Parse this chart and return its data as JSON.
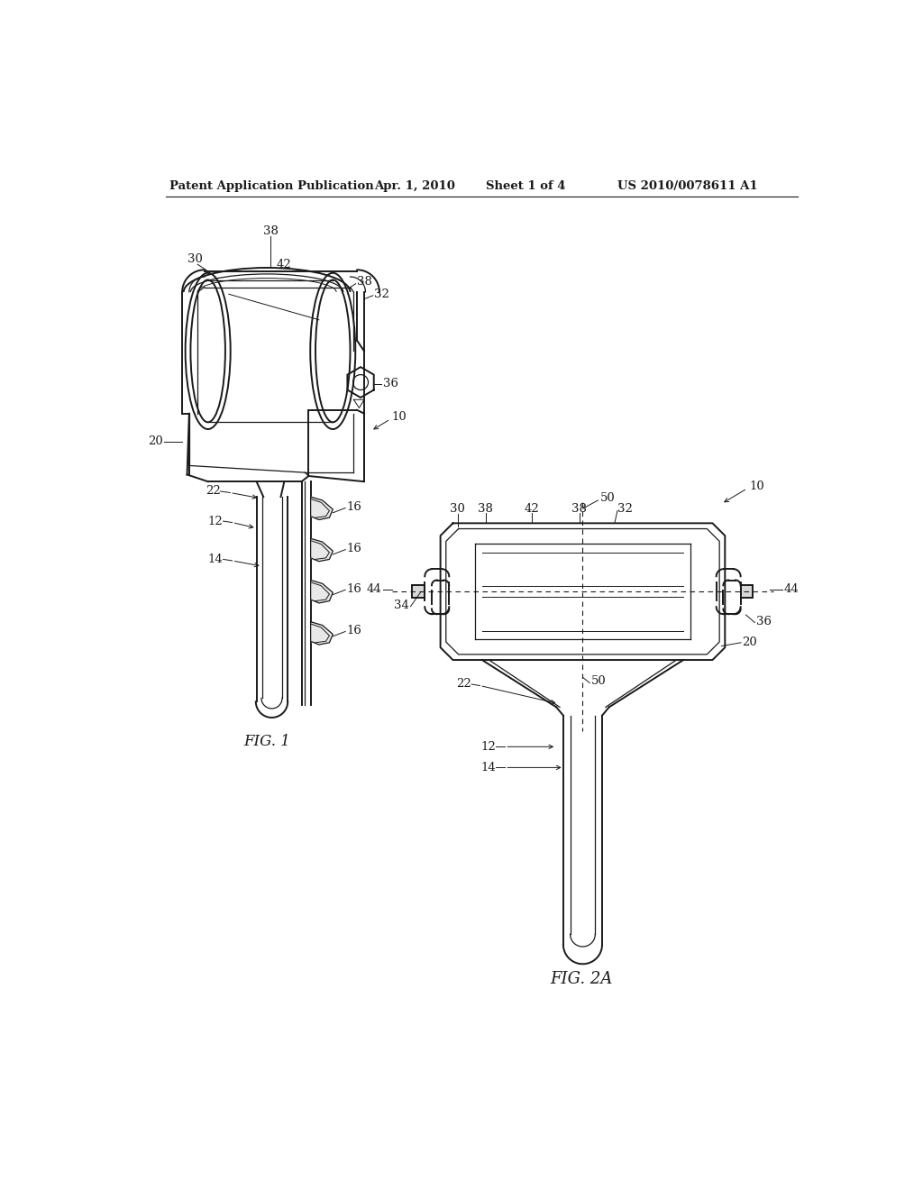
{
  "bg_color": "#ffffff",
  "line_color": "#1a1a1a",
  "header_text": "Patent Application Publication",
  "header_date": "Apr. 1, 2010",
  "header_sheet": "Sheet 1 of 4",
  "header_patent": "US 2010/0078611 A1",
  "fig1_label": "FIG. 1",
  "fig2_label": "FIG. 2A"
}
